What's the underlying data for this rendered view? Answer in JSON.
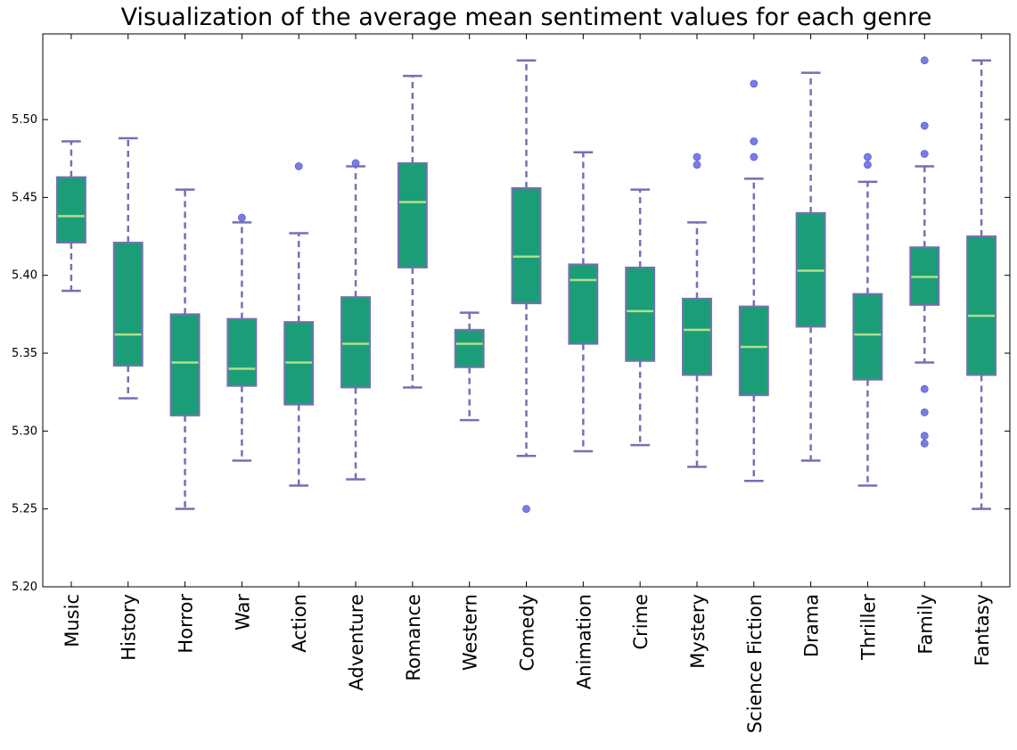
{
  "chart_data": {
    "type": "box",
    "title": "Visualization of the average mean sentiment values for each genre",
    "xlabel": "",
    "ylabel": "",
    "ylim": [
      5.2,
      5.555
    ],
    "yticks": [
      "5.20",
      "5.25",
      "5.30",
      "5.35",
      "5.40",
      "5.45",
      "5.50"
    ],
    "categories": [
      "Music",
      "History",
      "Horror",
      "War",
      "Action",
      "Adventure",
      "Romance",
      "Western",
      "Comedy",
      "Animation",
      "Crime",
      "Mystery",
      "Science Fiction",
      "Drama",
      "Thriller",
      "Family",
      "Fantasy"
    ],
    "boxes": [
      {
        "whislo": 5.39,
        "q1": 5.421,
        "med": 5.438,
        "q3": 5.463,
        "whishi": 5.486,
        "fliers": []
      },
      {
        "whislo": 5.321,
        "q1": 5.342,
        "med": 5.362,
        "q3": 5.421,
        "whishi": 5.488,
        "fliers": []
      },
      {
        "whislo": 5.25,
        "q1": 5.31,
        "med": 5.344,
        "q3": 5.375,
        "whishi": 5.455,
        "fliers": []
      },
      {
        "whislo": 5.281,
        "q1": 5.329,
        "med": 5.34,
        "q3": 5.372,
        "whishi": 5.434,
        "fliers": [
          5.437
        ]
      },
      {
        "whislo": 5.265,
        "q1": 5.317,
        "med": 5.344,
        "q3": 5.37,
        "whishi": 5.427,
        "fliers": [
          5.47
        ]
      },
      {
        "whislo": 5.269,
        "q1": 5.328,
        "med": 5.356,
        "q3": 5.386,
        "whishi": 5.47,
        "fliers": [
          5.472
        ]
      },
      {
        "whislo": 5.328,
        "q1": 5.405,
        "med": 5.447,
        "q3": 5.472,
        "whishi": 5.528,
        "fliers": []
      },
      {
        "whislo": 5.307,
        "q1": 5.341,
        "med": 5.356,
        "q3": 5.365,
        "whishi": 5.376,
        "fliers": []
      },
      {
        "whislo": 5.284,
        "q1": 5.382,
        "med": 5.412,
        "q3": 5.456,
        "whishi": 5.538,
        "fliers": [
          5.25
        ]
      },
      {
        "whislo": 5.287,
        "q1": 5.356,
        "med": 5.397,
        "q3": 5.407,
        "whishi": 5.479,
        "fliers": []
      },
      {
        "whislo": 5.291,
        "q1": 5.345,
        "med": 5.377,
        "q3": 5.405,
        "whishi": 5.455,
        "fliers": []
      },
      {
        "whislo": 5.277,
        "q1": 5.336,
        "med": 5.365,
        "q3": 5.385,
        "whishi": 5.434,
        "fliers": [
          5.471,
          5.476
        ]
      },
      {
        "whislo": 5.268,
        "q1": 5.323,
        "med": 5.354,
        "q3": 5.38,
        "whishi": 5.462,
        "fliers": [
          5.476,
          5.486,
          5.523
        ]
      },
      {
        "whislo": 5.281,
        "q1": 5.367,
        "med": 5.403,
        "q3": 5.44,
        "whishi": 5.53,
        "fliers": []
      },
      {
        "whislo": 5.265,
        "q1": 5.333,
        "med": 5.362,
        "q3": 5.388,
        "whishi": 5.46,
        "fliers": [
          5.471,
          5.476
        ]
      },
      {
        "whislo": 5.344,
        "q1": 5.381,
        "med": 5.399,
        "q3": 5.418,
        "whishi": 5.47,
        "fliers": [
          5.292,
          5.297,
          5.312,
          5.327,
          5.478,
          5.496,
          5.538
        ]
      },
      {
        "whislo": 5.25,
        "q1": 5.336,
        "med": 5.374,
        "q3": 5.425,
        "whishi": 5.538,
        "fliers": []
      }
    ],
    "grid": false,
    "legend": "none"
  },
  "colors": {
    "box_fill": "#1b9e77",
    "box_edge": "#7570b3",
    "whisker": "#7570b3",
    "median": "#b2df8a",
    "flier": "#7b7be8"
  }
}
